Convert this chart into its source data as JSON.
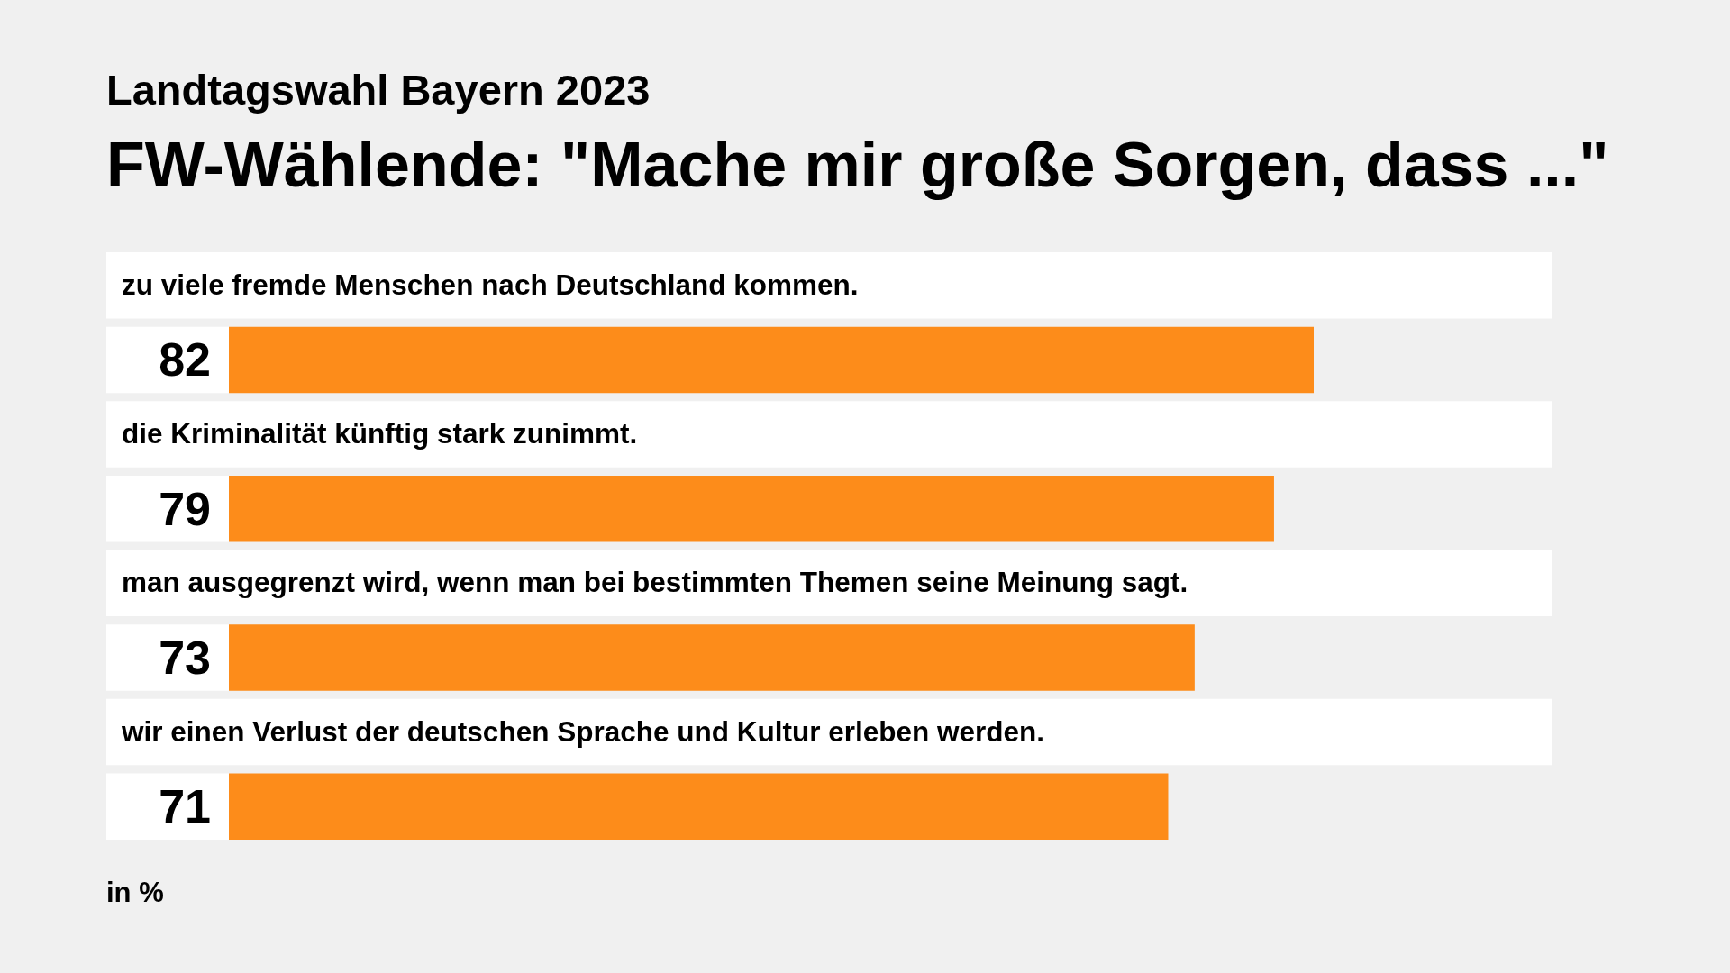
{
  "chart_data": {
    "type": "bar",
    "orientation": "horizontal",
    "subtitle": "Landtagswahl Bayern 2023",
    "title": "FW-Wählende: \"Mache mir große Sorgen, dass ...\"",
    "categories": [
      "zu viele fremde Menschen nach Deutschland kommen.",
      "die Kriminalität künftig stark zunimmt.",
      "man ausgegrenzt wird, wenn man bei bestimmten Themen seine Meinung sagt.",
      "wir einen Verlust der deutschen Sprache und Kultur erleben werden."
    ],
    "values": [
      82,
      79,
      73,
      71
    ],
    "color": "#fd8c1a",
    "data_labels": true,
    "annotations": [
      "in %"
    ]
  }
}
